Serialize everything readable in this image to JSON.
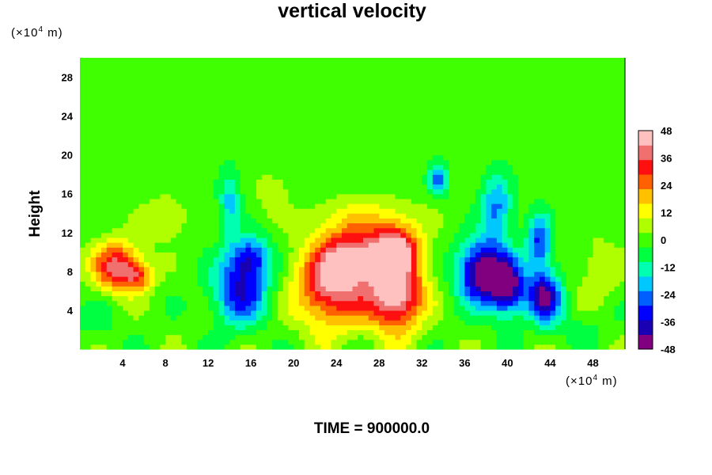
{
  "chart_data": {
    "type": "heatmap",
    "title": "vertical velocity",
    "ylabel": "Height",
    "x_unit": {
      "prefix": "(×10",
      "exp": "4",
      "suffix": " m)"
    },
    "y_unit": {
      "prefix": "(×10",
      "exp": "4",
      "suffix": " m)"
    },
    "xlim": [
      0,
      51
    ],
    "ylim": [
      0,
      30
    ],
    "x_ticks": [
      4,
      8,
      12,
      16,
      20,
      24,
      28,
      32,
      36,
      40,
      44,
      48
    ],
    "y_ticks": [
      4,
      8,
      12,
      16,
      20,
      24,
      28
    ],
    "colorbar": {
      "min": -48,
      "max": 48,
      "tick_labels": [
        48,
        36,
        24,
        12,
        0,
        -12,
        -24,
        -36,
        -48
      ],
      "colors": [
        "#800080",
        "#1a00b3",
        "#0000ff",
        "#0060ff",
        "#00c8ff",
        "#00ffb0",
        "#00ff40",
        "#40ff00",
        "#b0ff00",
        "#ffff00",
        "#ffc000",
        "#ff6000",
        "#ff1010",
        "#f07070",
        "#ffc0c0"
      ]
    },
    "features": [
      {
        "x": 3.5,
        "y": 8.5,
        "sx": 1.6,
        "sy": 1.8,
        "value": 38
      },
      {
        "x": 5.5,
        "y": 7.5,
        "sx": 1.0,
        "sy": 1.0,
        "value": 20
      },
      {
        "x": 15.0,
        "y": 6.0,
        "sx": 1.8,
        "sy": 2.4,
        "value": -34
      },
      {
        "x": 16.0,
        "y": 9.5,
        "sx": 1.3,
        "sy": 1.5,
        "value": -28
      },
      {
        "x": 14.0,
        "y": 15.0,
        "sx": 0.7,
        "sy": 2.5,
        "value": -18
      },
      {
        "x": 23.5,
        "y": 6.5,
        "sx": 2.3,
        "sy": 3.0,
        "value": 40
      },
      {
        "x": 25.5,
        "y": 9.5,
        "sx": 2.0,
        "sy": 2.0,
        "value": 32
      },
      {
        "x": 29.5,
        "y": 6.0,
        "sx": 1.8,
        "sy": 2.8,
        "value": 52
      },
      {
        "x": 29.5,
        "y": 10.5,
        "sx": 1.5,
        "sy": 1.5,
        "value": 40
      },
      {
        "x": 27.0,
        "y": 13.5,
        "sx": 3.5,
        "sy": 1.5,
        "value": 12
      },
      {
        "x": 37.5,
        "y": 8.0,
        "sx": 1.5,
        "sy": 2.2,
        "value": -48
      },
      {
        "x": 40.0,
        "y": 6.5,
        "sx": 1.2,
        "sy": 2.0,
        "value": -46
      },
      {
        "x": 43.5,
        "y": 5.5,
        "sx": 1.1,
        "sy": 1.8,
        "value": -42
      },
      {
        "x": 39.0,
        "y": 14.5,
        "sx": 1.0,
        "sy": 2.5,
        "value": -24
      },
      {
        "x": 43.0,
        "y": 11.0,
        "sx": 0.8,
        "sy": 2.0,
        "value": -30
      },
      {
        "x": 33.5,
        "y": 17.5,
        "sx": 0.6,
        "sy": 1.2,
        "value": -26
      },
      {
        "x": 8.0,
        "y": 13.5,
        "sx": 1.5,
        "sy": 1.5,
        "value": 10
      },
      {
        "x": 18.0,
        "y": 16.0,
        "sx": 1.0,
        "sy": 1.5,
        "value": 8
      },
      {
        "x": 48.5,
        "y": 8.0,
        "sx": 1.5,
        "sy": 2.5,
        "value": 8
      },
      {
        "x": 1.5,
        "y": 3.0,
        "sx": 1.5,
        "sy": 1.5,
        "value": -6
      },
      {
        "x": 46.5,
        "y": 2.5,
        "sx": 2.0,
        "sy": 1.2,
        "value": -6
      }
    ]
  },
  "footer": {
    "time_label": "TIME = 900000.0"
  }
}
